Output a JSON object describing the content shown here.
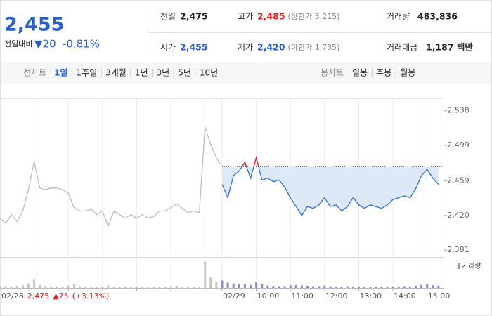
{
  "header": {
    "price": "2,455",
    "change_label": "전일대비",
    "change": "▼20",
    "rate": "-0.81%"
  },
  "info": {
    "items": [
      {
        "name": "전일",
        "value": 2475,
        "label": "2,475"
      },
      {
        "name": "고가",
        "label": "2,485",
        "note": "(상한가 3,215)"
      },
      {
        "name": "거래량",
        "label": "483,836"
      },
      {
        "name": "시가",
        "label": "2,455"
      },
      {
        "name": "저가",
        "label": "2,420",
        "note": "(하한가 1,735)"
      },
      {
        "name": "거래대금",
        "label": "1,187 백만"
      }
    ]
  },
  "tabs": {
    "line_label": "선차트",
    "line_tabs": [
      "1일",
      "1주일",
      "3개월",
      "1년",
      "3년",
      "5년",
      "10년"
    ],
    "candle_label": "봉차트",
    "candle_tabs": [
      "일봉",
      "주봉",
      "월봉"
    ]
  },
  "chart_data": [
    {
      "type": "line",
      "xlim": [
        "02/28 09:00",
        "02/29 15:30"
      ],
      "ylim": [
        2374,
        2552
      ],
      "yticks": [
        {
          "value": 2538,
          "label": "2,538"
        },
        {
          "value": 2499,
          "label": "2,499"
        },
        {
          "value": 2459,
          "label": "2,459"
        },
        {
          "value": 2420,
          "label": "2,420"
        },
        {
          "value": 2381,
          "label": "2,381"
        }
      ],
      "xticks": [
        {
          "value": "02/28 10:00",
          "label": null
        },
        {
          "value": "02/28 11:00",
          "label": null
        },
        {
          "value": "02/28 12:00",
          "label": null
        },
        {
          "value": "02/28 13:00",
          "label": null
        },
        {
          "value": "02/28 14:00",
          "label": null
        },
        {
          "value": "02/28 15:00",
          "label": null
        },
        {
          "value": "02/29 09:00",
          "label": "02/29"
        },
        {
          "value": "02/29 10:00",
          "label": "10:00"
        },
        {
          "value": "02/29 11:00",
          "label": "11:00"
        },
        {
          "value": "02/29 12:00",
          "label": "12:00"
        },
        {
          "value": "02/29 13:00",
          "label": "13:00"
        },
        {
          "value": "02/29 14:00",
          "label": "14:00"
        },
        {
          "value": "02/29 15:00",
          "label": "15:00"
        }
      ],
      "prev_day": {
        "date": "02/28",
        "close": "2,475",
        "change": "▲75",
        "rate": "(+3.13%)"
      },
      "series": [
        {
          "color": "#bdbdc2",
          "x": [
            "02/28 09:00",
            "02/28 09:10",
            "02/28 09:20",
            "02/28 09:30",
            "02/28 09:40",
            "02/28 09:50",
            "02/28 10:00",
            "02/28 10:10",
            "02/28 10:20",
            "02/28 10:30",
            "02/28 10:40",
            "02/28 10:50",
            "02/28 11:00",
            "02/28 11:10",
            "02/28 11:20",
            "02/28 11:30",
            "02/28 11:40",
            "02/28 11:50",
            "02/28 12:00",
            "02/28 12:10",
            "02/28 12:20",
            "02/28 12:30",
            "02/28 12:40",
            "02/28 12:50",
            "02/28 13:00",
            "02/28 13:10",
            "02/28 13:20",
            "02/28 13:30",
            "02/28 13:40",
            "02/28 13:50",
            "02/28 14:00",
            "02/28 14:10",
            "02/28 14:20",
            "02/28 14:30",
            "02/28 14:40",
            "02/28 14:50",
            "02/28 15:00",
            "02/28 15:10",
            "02/28 15:20",
            "02/28 15:30"
          ],
          "values": [
            2417,
            2411,
            2421,
            2413,
            2425,
            2449,
            2481,
            2451,
            2449,
            2451,
            2451,
            2449,
            2445,
            2429,
            2425,
            2425,
            2427,
            2421,
            2425,
            2408,
            2425,
            2421,
            2417,
            2421,
            2417,
            2421,
            2417,
            2419,
            2425,
            2425,
            2429,
            2433,
            2428,
            2423,
            2425,
            2423,
            2520,
            2500,
            2485,
            2475
          ]
        },
        {
          "color": "#2f6fd6",
          "above_color": "#e52222",
          "fill": "#dde8f8",
          "x": [
            "02/29 09:00",
            "02/29 09:10",
            "02/29 09:20",
            "02/29 09:30",
            "02/29 09:40",
            "02/29 09:50",
            "02/29 10:00",
            "02/29 10:10",
            "02/29 10:20",
            "02/29 10:30",
            "02/29 10:40",
            "02/29 10:50",
            "02/29 11:00",
            "02/29 11:10",
            "02/29 11:20",
            "02/29 11:30",
            "02/29 11:40",
            "02/29 11:50",
            "02/29 12:00",
            "02/29 12:10",
            "02/29 12:20",
            "02/29 12:30",
            "02/29 12:40",
            "02/29 12:50",
            "02/29 13:00",
            "02/29 13:10",
            "02/29 13:20",
            "02/29 13:30",
            "02/29 13:40",
            "02/29 13:50",
            "02/29 14:00",
            "02/29 14:10",
            "02/29 14:20",
            "02/29 14:30",
            "02/29 14:40",
            "02/29 14:50",
            "02/29 15:00",
            "02/29 15:10",
            "02/29 15:20"
          ],
          "values": [
            2455,
            2440,
            2465,
            2470,
            2480,
            2462,
            2485,
            2460,
            2462,
            2458,
            2460,
            2452,
            2440,
            2430,
            2420,
            2430,
            2428,
            2432,
            2440,
            2430,
            2432,
            2425,
            2430,
            2440,
            2432,
            2428,
            2432,
            2430,
            2428,
            2432,
            2438,
            2440,
            2442,
            2440,
            2450,
            2465,
            2472,
            2462,
            2455
          ]
        }
      ]
    },
    {
      "type": "bar",
      "xlim": [
        "02/28 09:00",
        "02/29 15:30"
      ],
      "ylim": [
        0,
        100000
      ],
      "series": [
        {
          "color": "#c6c6cb",
          "x": [
            "02/28 09:00",
            "02/28 09:10",
            "02/28 09:20",
            "02/28 09:30",
            "02/28 09:40",
            "02/28 09:50",
            "02/28 10:00",
            "02/28 10:10",
            "02/28 10:20",
            "02/28 10:30",
            "02/28 10:40",
            "02/28 10:50",
            "02/28 11:00",
            "02/28 11:10",
            "02/28 11:20",
            "02/28 11:30",
            "02/28 11:40",
            "02/28 11:50",
            "02/28 12:00",
            "02/28 12:10",
            "02/28 12:20",
            "02/28 12:30",
            "02/28 12:40",
            "02/28 12:50",
            "02/28 13:00",
            "02/28 13:10",
            "02/28 13:20",
            "02/28 13:30",
            "02/28 13:40",
            "02/28 13:50",
            "02/28 14:00",
            "02/28 14:10",
            "02/28 14:20",
            "02/28 14:30",
            "02/28 14:40",
            "02/28 14:50",
            "02/28 15:00",
            "02/28 15:10",
            "02/28 15:20",
            "02/28 15:30"
          ],
          "values": [
            8000,
            6000,
            5000,
            7000,
            9000,
            15000,
            28000,
            10000,
            6000,
            5000,
            5000,
            4000,
            8000,
            12000,
            6000,
            5000,
            4000,
            4000,
            5000,
            9000,
            4000,
            3000,
            3000,
            3000,
            4000,
            3000,
            3000,
            3000,
            4000,
            5000,
            6000,
            8000,
            5000,
            4000,
            4000,
            5000,
            90000,
            35000,
            20000,
            15000
          ]
        },
        {
          "name": "거래량",
          "color": "#9487cc",
          "x": [
            "02/29 09:00",
            "02/29 09:10",
            "02/29 09:20",
            "02/29 09:30",
            "02/29 09:40",
            "02/29 09:50",
            "02/29 10:00",
            "02/29 10:10",
            "02/29 10:20",
            "02/29 10:30",
            "02/29 10:40",
            "02/29 10:50",
            "02/29 11:00",
            "02/29 11:10",
            "02/29 11:20",
            "02/29 11:30",
            "02/29 11:40",
            "02/29 11:50",
            "02/29 12:00",
            "02/29 12:10",
            "02/29 12:20",
            "02/29 12:30",
            "02/29 12:40",
            "02/29 12:50",
            "02/29 13:00",
            "02/29 13:10",
            "02/29 13:20",
            "02/29 13:30",
            "02/29 13:40",
            "02/29 13:50",
            "02/29 14:00",
            "02/29 14:10",
            "02/29 14:20",
            "02/29 14:30",
            "02/29 14:40",
            "02/29 14:50",
            "02/29 15:00",
            "02/29 15:10",
            "02/29 15:20"
          ],
          "values": [
            25000,
            18000,
            15000,
            12000,
            14000,
            10000,
            20000,
            12000,
            8000,
            7000,
            6000,
            6000,
            9000,
            10000,
            8000,
            7000,
            6000,
            6000,
            8000,
            6000,
            5000,
            5000,
            6000,
            5000,
            5000,
            4000,
            4000,
            5000,
            5000,
            4000,
            5000,
            5000,
            6000,
            5000,
            8000,
            10000,
            12000,
            9000,
            8000
          ]
        }
      ]
    }
  ]
}
